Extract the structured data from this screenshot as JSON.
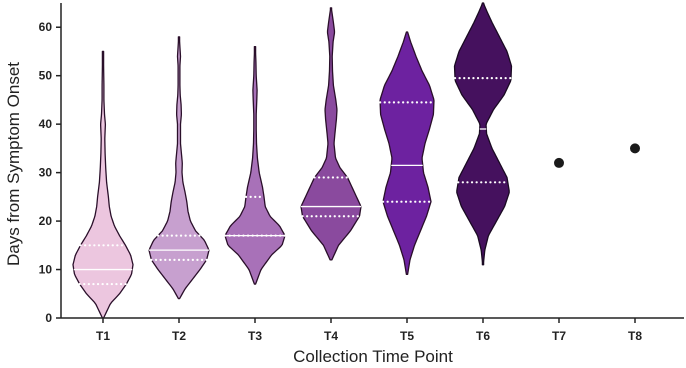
{
  "chart_data": {
    "type": "violin",
    "xlabel": "Collection Time Point",
    "ylabel": "Days from Symptom Onset",
    "ylim": [
      0,
      65
    ],
    "yticks": [
      0,
      10,
      20,
      30,
      40,
      50,
      60
    ],
    "categories": [
      "T1",
      "T2",
      "T3",
      "T4",
      "T5",
      "T6",
      "T7",
      "T8"
    ],
    "groups": [
      {
        "name": "T1",
        "color": "#ecc6df",
        "edge": "#2a0f2a",
        "min": 0,
        "max": 55,
        "median": 10,
        "q1": 7,
        "q3": 15,
        "profile": [
          [
            0,
            0.02
          ],
          [
            3,
            0.25
          ],
          [
            5,
            0.55
          ],
          [
            7,
            0.78
          ],
          [
            9,
            0.95
          ],
          [
            11,
            1.0
          ],
          [
            13,
            0.92
          ],
          [
            15,
            0.75
          ],
          [
            17,
            0.55
          ],
          [
            19,
            0.38
          ],
          [
            21,
            0.27
          ],
          [
            23,
            0.21
          ],
          [
            25,
            0.18
          ],
          [
            28,
            0.12
          ],
          [
            31,
            0.09
          ],
          [
            34,
            0.07
          ],
          [
            37,
            0.06
          ],
          [
            40,
            0.08
          ],
          [
            42,
            0.05
          ],
          [
            45,
            0.03
          ],
          [
            48,
            0.03
          ],
          [
            52,
            0.02
          ],
          [
            55,
            0.01
          ]
        ]
      },
      {
        "name": "T2",
        "color": "#c7a0cf",
        "edge": "#2a0f2a",
        "min": 4,
        "max": 58,
        "median": 14,
        "q1": 12,
        "q3": 17,
        "profile": [
          [
            4,
            0.02
          ],
          [
            6,
            0.2
          ],
          [
            8,
            0.45
          ],
          [
            10,
            0.7
          ],
          [
            12,
            0.92
          ],
          [
            14,
            1.0
          ],
          [
            16,
            0.85
          ],
          [
            18,
            0.55
          ],
          [
            20,
            0.38
          ],
          [
            22,
            0.3
          ],
          [
            24,
            0.26
          ],
          [
            26,
            0.2
          ],
          [
            28,
            0.13
          ],
          [
            30,
            0.1
          ],
          [
            32,
            0.11
          ],
          [
            34,
            0.08
          ],
          [
            36,
            0.05
          ],
          [
            38,
            0.05
          ],
          [
            40,
            0.05
          ],
          [
            42,
            0.08
          ],
          [
            44,
            0.07
          ],
          [
            46,
            0.04
          ],
          [
            48,
            0.03
          ],
          [
            50,
            0.03
          ],
          [
            52,
            0.03
          ],
          [
            54,
            0.05
          ],
          [
            56,
            0.03
          ],
          [
            58,
            0.01
          ]
        ]
      },
      {
        "name": "T3",
        "color": "#a871b8",
        "edge": "#2a0f2a",
        "min": 7,
        "max": 56,
        "median": 17,
        "q1": 17,
        "q3": 25,
        "profile": [
          [
            7,
            0.02
          ],
          [
            10,
            0.2
          ],
          [
            13,
            0.55
          ],
          [
            15,
            0.9
          ],
          [
            17,
            1.0
          ],
          [
            19,
            0.82
          ],
          [
            21,
            0.5
          ],
          [
            23,
            0.34
          ],
          [
            25,
            0.3
          ],
          [
            27,
            0.25
          ],
          [
            30,
            0.14
          ],
          [
            33,
            0.08
          ],
          [
            36,
            0.05
          ],
          [
            39,
            0.04
          ],
          [
            42,
            0.04
          ],
          [
            45,
            0.06
          ],
          [
            47,
            0.07
          ],
          [
            50,
            0.04
          ],
          [
            53,
            0.03
          ],
          [
            56,
            0.01
          ]
        ]
      },
      {
        "name": "T4",
        "color": "#8a4a9e",
        "edge": "#2a0f2a",
        "min": 12,
        "max": 64,
        "median": 23,
        "q1": 21,
        "q3": 29,
        "profile": [
          [
            12,
            0.03
          ],
          [
            15,
            0.25
          ],
          [
            18,
            0.65
          ],
          [
            21,
            0.95
          ],
          [
            23,
            1.0
          ],
          [
            25,
            0.85
          ],
          [
            27,
            0.7
          ],
          [
            29,
            0.55
          ],
          [
            31,
            0.3
          ],
          [
            33,
            0.15
          ],
          [
            36,
            0.1
          ],
          [
            38,
            0.13
          ],
          [
            41,
            0.18
          ],
          [
            43,
            0.2
          ],
          [
            45,
            0.16
          ],
          [
            48,
            0.08
          ],
          [
            51,
            0.05
          ],
          [
            54,
            0.04
          ],
          [
            57,
            0.07
          ],
          [
            59,
            0.12
          ],
          [
            61,
            0.08
          ],
          [
            64,
            0.01
          ]
        ]
      },
      {
        "name": "T5",
        "color": "#6d22a0",
        "edge": "#2a0f2a",
        "min": 9,
        "max": 59,
        "median": 31.5,
        "q1": 24,
        "q3": 44.5,
        "profile": [
          [
            9,
            0.02
          ],
          [
            12,
            0.1
          ],
          [
            15,
            0.25
          ],
          [
            18,
            0.45
          ],
          [
            21,
            0.65
          ],
          [
            24,
            0.8
          ],
          [
            27,
            0.7
          ],
          [
            30,
            0.55
          ],
          [
            33,
            0.5
          ],
          [
            36,
            0.6
          ],
          [
            39,
            0.75
          ],
          [
            42,
            0.88
          ],
          [
            45,
            0.9
          ],
          [
            48,
            0.75
          ],
          [
            51,
            0.5
          ],
          [
            54,
            0.3
          ],
          [
            57,
            0.12
          ],
          [
            59,
            0.02
          ]
        ]
      },
      {
        "name": "T6",
        "color": "#45115e",
        "edge": "#1a0a22",
        "min": 11,
        "max": 65,
        "median": 39,
        "q1": 28,
        "q3": 49.5,
        "profile": [
          [
            11,
            0.01
          ],
          [
            14,
            0.06
          ],
          [
            17,
            0.18
          ],
          [
            20,
            0.45
          ],
          [
            23,
            0.72
          ],
          [
            26,
            0.88
          ],
          [
            29,
            0.8
          ],
          [
            32,
            0.55
          ],
          [
            35,
            0.3
          ],
          [
            38,
            0.12
          ],
          [
            40,
            0.1
          ],
          [
            43,
            0.35
          ],
          [
            46,
            0.7
          ],
          [
            49,
            0.93
          ],
          [
            52,
            0.95
          ],
          [
            55,
            0.8
          ],
          [
            58,
            0.55
          ],
          [
            61,
            0.3
          ],
          [
            63,
            0.15
          ],
          [
            65,
            0.01
          ]
        ]
      },
      {
        "name": "T7",
        "point": 32,
        "color": "#1a1a1a"
      },
      {
        "name": "T8",
        "point": 35,
        "color": "#1a1a1a"
      }
    ],
    "grid": false,
    "legend": "none"
  }
}
